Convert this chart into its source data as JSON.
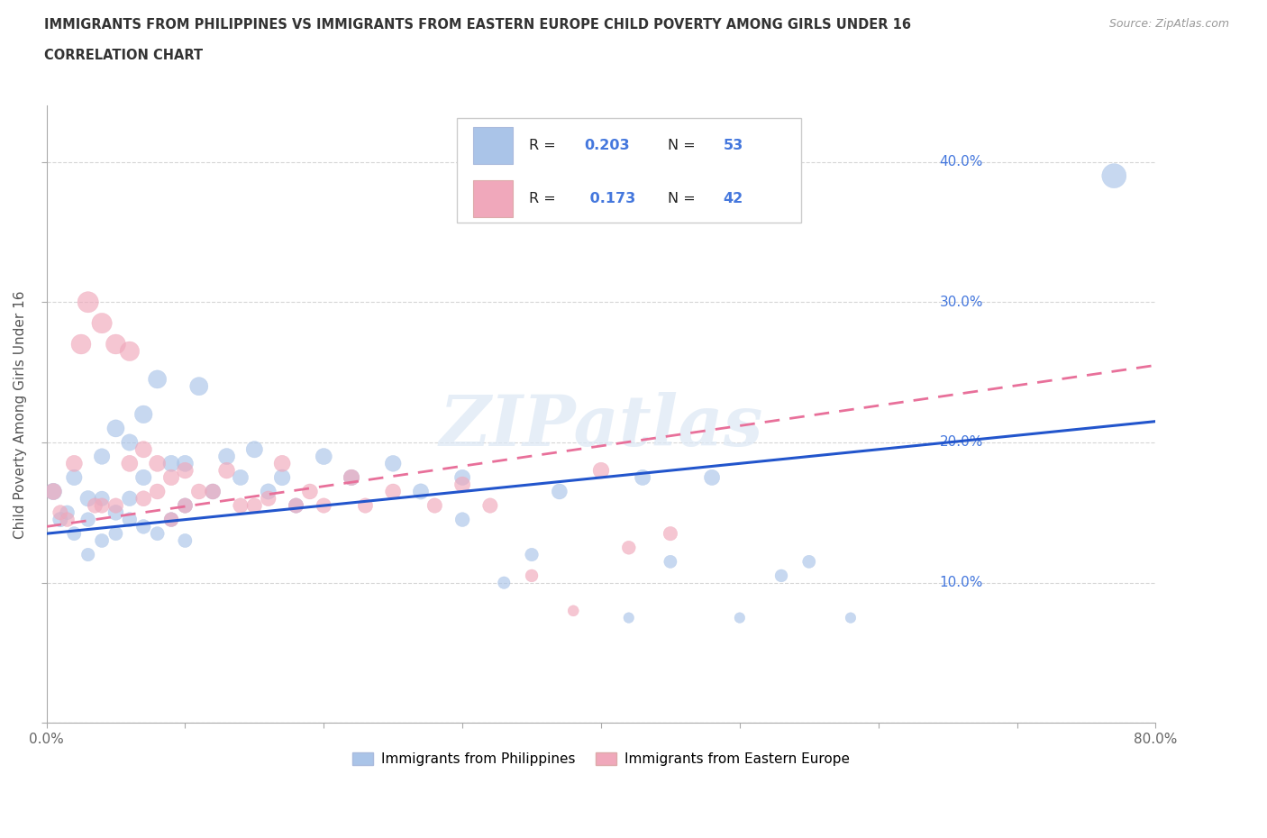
{
  "title": "IMMIGRANTS FROM PHILIPPINES VS IMMIGRANTS FROM EASTERN EUROPE CHILD POVERTY AMONG GIRLS UNDER 16",
  "subtitle": "CORRELATION CHART",
  "source": "Source: ZipAtlas.com",
  "ylabel": "Child Poverty Among Girls Under 16",
  "xlim": [
    0,
    0.8
  ],
  "ylim": [
    0,
    0.44
  ],
  "xtick_vals": [
    0.0,
    0.1,
    0.2,
    0.3,
    0.4,
    0.5,
    0.6,
    0.7,
    0.8
  ],
  "ytick_vals": [
    0.0,
    0.1,
    0.2,
    0.3,
    0.4
  ],
  "grid_color": "#cccccc",
  "background_color": "#ffffff",
  "philippines_color": "#aac4e8",
  "eastern_europe_color": "#f0a8bb",
  "philippines_line_color": "#2255cc",
  "eastern_europe_line_color": "#e8709a",
  "tick_color": "#4477dd",
  "watermark": "ZIPatlas",
  "philippines_x": [
    0.005,
    0.01,
    0.015,
    0.02,
    0.02,
    0.03,
    0.03,
    0.03,
    0.04,
    0.04,
    0.04,
    0.05,
    0.05,
    0.05,
    0.06,
    0.06,
    0.06,
    0.07,
    0.07,
    0.07,
    0.08,
    0.08,
    0.09,
    0.09,
    0.1,
    0.1,
    0.1,
    0.11,
    0.12,
    0.13,
    0.14,
    0.15,
    0.16,
    0.17,
    0.18,
    0.2,
    0.22,
    0.25,
    0.27,
    0.3,
    0.3,
    0.33,
    0.35,
    0.37,
    0.42,
    0.43,
    0.45,
    0.48,
    0.5,
    0.53,
    0.55,
    0.58,
    0.77
  ],
  "philippines_y": [
    0.165,
    0.145,
    0.15,
    0.175,
    0.135,
    0.16,
    0.145,
    0.12,
    0.19,
    0.16,
    0.13,
    0.21,
    0.15,
    0.135,
    0.2,
    0.16,
    0.145,
    0.22,
    0.175,
    0.14,
    0.245,
    0.135,
    0.185,
    0.145,
    0.185,
    0.155,
    0.13,
    0.24,
    0.165,
    0.19,
    0.175,
    0.195,
    0.165,
    0.175,
    0.155,
    0.19,
    0.175,
    0.185,
    0.165,
    0.175,
    0.145,
    0.1,
    0.12,
    0.165,
    0.075,
    0.175,
    0.115,
    0.175,
    0.075,
    0.105,
    0.115,
    0.075,
    0.39
  ],
  "eastern_europe_x": [
    0.005,
    0.01,
    0.015,
    0.02,
    0.025,
    0.03,
    0.035,
    0.04,
    0.04,
    0.05,
    0.05,
    0.06,
    0.06,
    0.07,
    0.07,
    0.08,
    0.08,
    0.09,
    0.09,
    0.1,
    0.1,
    0.11,
    0.12,
    0.13,
    0.14,
    0.15,
    0.16,
    0.17,
    0.18,
    0.19,
    0.2,
    0.22,
    0.23,
    0.25,
    0.28,
    0.3,
    0.32,
    0.35,
    0.38,
    0.4,
    0.42,
    0.45
  ],
  "eastern_europe_y": [
    0.165,
    0.15,
    0.145,
    0.185,
    0.27,
    0.3,
    0.155,
    0.285,
    0.155,
    0.27,
    0.155,
    0.265,
    0.185,
    0.195,
    0.16,
    0.185,
    0.165,
    0.175,
    0.145,
    0.18,
    0.155,
    0.165,
    0.165,
    0.18,
    0.155,
    0.155,
    0.16,
    0.185,
    0.155,
    0.165,
    0.155,
    0.175,
    0.155,
    0.165,
    0.155,
    0.17,
    0.155,
    0.105,
    0.08,
    0.18,
    0.125,
    0.135
  ],
  "philippines_sizes": [
    180,
    140,
    130,
    160,
    120,
    160,
    130,
    110,
    160,
    140,
    120,
    190,
    150,
    120,
    175,
    145,
    130,
    200,
    160,
    130,
    210,
    120,
    170,
    130,
    170,
    140,
    120,
    210,
    150,
    170,
    155,
    175,
    155,
    165,
    140,
    170,
    160,
    165,
    155,
    155,
    130,
    95,
    110,
    150,
    70,
    155,
    105,
    155,
    70,
    100,
    105,
    70,
    380
  ],
  "eastern_europe_sizes": [
    170,
    140,
    130,
    170,
    250,
    280,
    140,
    260,
    140,
    250,
    140,
    240,
    170,
    175,
    150,
    170,
    150,
    160,
    130,
    165,
    140,
    150,
    150,
    165,
    140,
    140,
    145,
    170,
    140,
    150,
    140,
    160,
    140,
    150,
    140,
    155,
    140,
    100,
    75,
    165,
    115,
    125
  ]
}
